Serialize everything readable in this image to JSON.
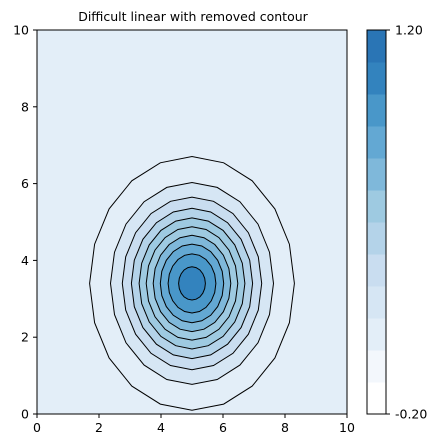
{
  "chart_data": {
    "type": "heatmap",
    "subtype": "filled-contour",
    "title": "Difficult linear with removed contour",
    "xlabel": "",
    "ylabel": "",
    "xlim": [
      0,
      10
    ],
    "ylim": [
      0,
      10
    ],
    "x_ticks": [
      "0",
      "2",
      "4",
      "6",
      "8",
      "10"
    ],
    "y_ticks": [
      "0",
      "2",
      "4",
      "6",
      "8",
      "10"
    ],
    "grid": false,
    "colormap": "Blues",
    "field": {
      "peak_value": 1.0,
      "center": [
        5.0,
        3.4
      ],
      "sigma_x": 1.35,
      "sigma_y": 1.35,
      "domain_x": [
        0,
        10
      ],
      "domain_y": [
        0,
        10
      ]
    },
    "contour_levels": [
      0.05,
      0.15,
      0.25,
      0.35,
      0.45,
      0.55,
      0.65,
      0.75,
      0.85,
      0.95
    ],
    "colorbar": {
      "min": -0.2,
      "max": 1.2,
      "tick_labels": [
        "1.20",
        "-0.20"
      ],
      "band_colors": [
        "#ffffff",
        "#f3f7fc",
        "#e3eef8",
        "#d6e6f4",
        "#c9ddf0",
        "#b4d3e9",
        "#9ecae1",
        "#7fb8da",
        "#63a8d3",
        "#4997c9",
        "#3383be",
        "#2a75b5"
      ]
    },
    "background_color": "#e3eef8",
    "line_color": "#000000"
  }
}
